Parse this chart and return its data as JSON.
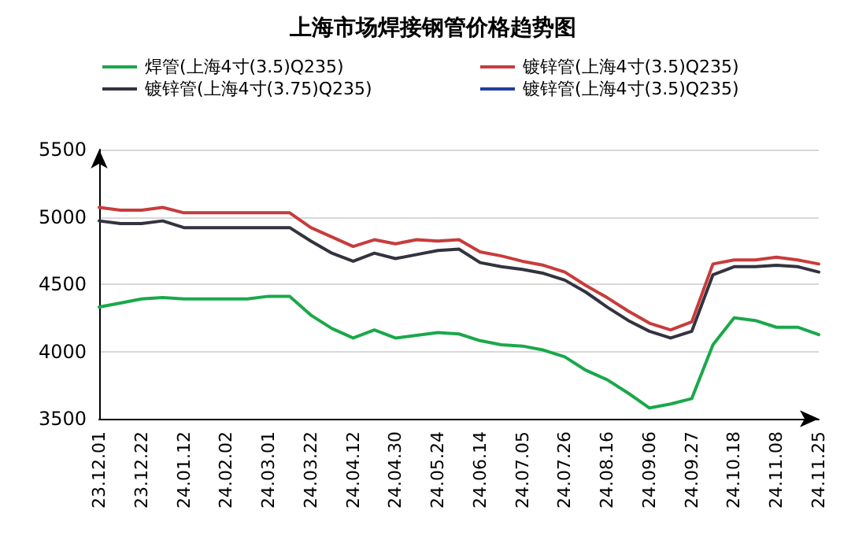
{
  "chart_data": {
    "type": "line",
    "title": "上海市场焊接钢管价格趋势图",
    "categories": [
      "23.12.01",
      null,
      "23.12.22",
      null,
      "24.01.12",
      null,
      "24.02.02",
      null,
      "24.03.01",
      null,
      "24.03.22",
      null,
      "24.04.12",
      null,
      "24.04.30",
      null,
      "24.05.24",
      null,
      "24.06.14",
      null,
      "24.07.05",
      null,
      "24.07.26",
      null,
      "24.08.16",
      null,
      "24.09.06",
      null,
      "24.09.27",
      null,
      "24.10.18",
      null,
      "24.11.08",
      null,
      "24.11.25"
    ],
    "series": [
      {
        "name": "焊管(上海4寸(3.5)Q235)",
        "color": "#1aa84a",
        "values": [
          4330,
          4360,
          4390,
          4400,
          4390,
          4390,
          4390,
          4390,
          4410,
          4410,
          4270,
          4170,
          4100,
          4160,
          4100,
          4120,
          4140,
          4130,
          4080,
          4050,
          4040,
          4010,
          3960,
          3860,
          3790,
          3690,
          3580,
          3610,
          3650,
          4050,
          4250,
          4230,
          4180,
          4180,
          4125
        ]
      },
      {
        "name": "镀锌管(上海4寸(3.5)Q235)",
        "color": "#c83c3c",
        "values": [
          5070,
          5050,
          5050,
          5070,
          5030,
          5030,
          5030,
          5030,
          5030,
          5030,
          4920,
          4850,
          4780,
          4830,
          4800,
          4830,
          4820,
          4830,
          4740,
          4710,
          4670,
          4640,
          4590,
          4490,
          4400,
          4300,
          4210,
          4160,
          4220,
          4650,
          4680,
          4680,
          4700,
          4680,
          4650
        ]
      },
      {
        "name": "镀锌管(上海4寸(3.75)Q235)",
        "color": "#333340",
        "values": [
          4970,
          4950,
          4950,
          4970,
          4920,
          4920,
          4920,
          4920,
          4920,
          4920,
          4820,
          4730,
          4670,
          4730,
          4690,
          4720,
          4750,
          4760,
          4660,
          4630,
          4610,
          4580,
          4530,
          4440,
          4330,
          4230,
          4150,
          4100,
          4150,
          4570,
          4630,
          4630,
          4640,
          4630,
          4590
        ]
      },
      {
        "name": "镀锌管(上海4寸(3.5)Q235)",
        "color": "#1f3f9f",
        "values": [
          null,
          null,
          null,
          null,
          null,
          null,
          null,
          null,
          null,
          null,
          null,
          null,
          null,
          null,
          null,
          null,
          null,
          null,
          null,
          null,
          null,
          null,
          null,
          null,
          null,
          null,
          null,
          null,
          null,
          null,
          null,
          null,
          null,
          null,
          null
        ]
      }
    ],
    "ylim": [
      3500,
      5500
    ],
    "yticks": [
      3500,
      4000,
      4500,
      5000,
      5500
    ],
    "grid": "y",
    "legend": "top",
    "marker": "none",
    "line_style": "solid"
  }
}
